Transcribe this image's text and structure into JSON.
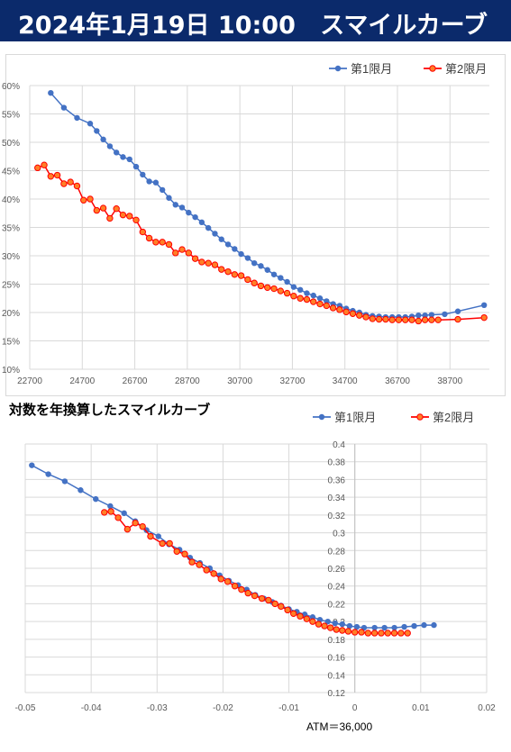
{
  "header": {
    "datetime": "2024年1月19日 10:00",
    "title": "スマイルカーブ"
  },
  "colors": {
    "header_bg": "#0b2a6b",
    "series1": "#4472c4",
    "series2": "#ff0000",
    "series2_fill": "#ff7f27",
    "grid": "#d9d9d9"
  },
  "chart_data": [
    {
      "type": "line",
      "title": "",
      "xlabel": "",
      "ylabel": "",
      "xlim": [
        22700,
        40200
      ],
      "ylim": [
        0.1,
        0.6
      ],
      "xticks": [
        22700,
        24700,
        26700,
        28700,
        30700,
        32700,
        34700,
        36700,
        38700
      ],
      "xtick_labels": [
        "22700",
        "24700",
        "26700",
        "28700",
        "30700",
        "32700",
        "34700",
        "36700",
        "38700"
      ],
      "yticks": [
        0.1,
        0.15,
        0.2,
        0.25,
        0.3,
        0.35,
        0.4,
        0.45,
        0.5,
        0.55,
        0.6
      ],
      "ytick_labels": [
        "10%",
        "15%",
        "20%",
        "25%",
        "30%",
        "35%",
        "40%",
        "45%",
        "50%",
        "55%",
        "60%"
      ],
      "legend": "top-right",
      "series": [
        {
          "name": "第1限月",
          "points": [
            [
              23500,
              0.587
            ],
            [
              24000,
              0.561
            ],
            [
              24500,
              0.543
            ],
            [
              25000,
              0.533
            ],
            [
              25250,
              0.52
            ],
            [
              25500,
              0.505
            ],
            [
              25750,
              0.493
            ],
            [
              26000,
              0.482
            ],
            [
              26250,
              0.474
            ],
            [
              26500,
              0.47
            ],
            [
              26750,
              0.457
            ],
            [
              27000,
              0.443
            ],
            [
              27250,
              0.431
            ],
            [
              27500,
              0.429
            ],
            [
              27750,
              0.416
            ],
            [
              28000,
              0.402
            ],
            [
              28250,
              0.39
            ],
            [
              28500,
              0.385
            ],
            [
              28750,
              0.376
            ],
            [
              29000,
              0.368
            ],
            [
              29250,
              0.359
            ],
            [
              29500,
              0.349
            ],
            [
              29750,
              0.339
            ],
            [
              30000,
              0.329
            ],
            [
              30250,
              0.32
            ],
            [
              30500,
              0.312
            ],
            [
              30750,
              0.303
            ],
            [
              31000,
              0.296
            ],
            [
              31250,
              0.287
            ],
            [
              31500,
              0.282
            ],
            [
              31750,
              0.275
            ],
            [
              32000,
              0.267
            ],
            [
              32250,
              0.261
            ],
            [
              32500,
              0.254
            ],
            [
              32750,
              0.245
            ],
            [
              33000,
              0.24
            ],
            [
              33250,
              0.234
            ],
            [
              33500,
              0.23
            ],
            [
              33750,
              0.225
            ],
            [
              34000,
              0.22
            ],
            [
              34250,
              0.215
            ],
            [
              34500,
              0.212
            ],
            [
              34750,
              0.207
            ],
            [
              35000,
              0.203
            ],
            [
              35250,
              0.2
            ],
            [
              35500,
              0.196
            ],
            [
              35750,
              0.194
            ],
            [
              36000,
              0.193
            ],
            [
              36250,
              0.192
            ],
            [
              36500,
              0.192
            ],
            [
              36750,
              0.192
            ],
            [
              37000,
              0.192
            ],
            [
              37250,
              0.193
            ],
            [
              37500,
              0.195
            ],
            [
              37750,
              0.195
            ],
            [
              38000,
              0.196
            ],
            [
              38500,
              0.197
            ],
            [
              39000,
              0.202
            ],
            [
              40000,
              0.213
            ]
          ]
        },
        {
          "name": "第2限月",
          "points": [
            [
              23000,
              0.455
            ],
            [
              23250,
              0.46
            ],
            [
              23500,
              0.44
            ],
            [
              23750,
              0.442
            ],
            [
              24000,
              0.427
            ],
            [
              24250,
              0.43
            ],
            [
              24500,
              0.423
            ],
            [
              24750,
              0.398
            ],
            [
              25000,
              0.4
            ],
            [
              25250,
              0.38
            ],
            [
              25500,
              0.384
            ],
            [
              25750,
              0.366
            ],
            [
              26000,
              0.383
            ],
            [
              26250,
              0.372
            ],
            [
              26500,
              0.37
            ],
            [
              26750,
              0.363
            ],
            [
              27000,
              0.342
            ],
            [
              27250,
              0.331
            ],
            [
              27500,
              0.324
            ],
            [
              27750,
              0.324
            ],
            [
              28000,
              0.32
            ],
            [
              28250,
              0.305
            ],
            [
              28500,
              0.311
            ],
            [
              28750,
              0.305
            ],
            [
              29000,
              0.295
            ],
            [
              29250,
              0.289
            ],
            [
              29500,
              0.287
            ],
            [
              29750,
              0.284
            ],
            [
              30000,
              0.276
            ],
            [
              30250,
              0.272
            ],
            [
              30500,
              0.267
            ],
            [
              30750,
              0.265
            ],
            [
              31000,
              0.258
            ],
            [
              31250,
              0.252
            ],
            [
              31500,
              0.247
            ],
            [
              31750,
              0.244
            ],
            [
              32000,
              0.242
            ],
            [
              32250,
              0.238
            ],
            [
              32500,
              0.234
            ],
            [
              32750,
              0.229
            ],
            [
              33000,
              0.225
            ],
            [
              33250,
              0.223
            ],
            [
              33500,
              0.219
            ],
            [
              33750,
              0.215
            ],
            [
              34000,
              0.212
            ],
            [
              34250,
              0.208
            ],
            [
              34500,
              0.205
            ],
            [
              34750,
              0.201
            ],
            [
              35000,
              0.198
            ],
            [
              35250,
              0.195
            ],
            [
              35500,
              0.192
            ],
            [
              35750,
              0.189
            ],
            [
              36000,
              0.188
            ],
            [
              36250,
              0.188
            ],
            [
              36500,
              0.187
            ],
            [
              36750,
              0.187
            ],
            [
              37000,
              0.187
            ],
            [
              37250,
              0.187
            ],
            [
              37500,
              0.185
            ],
            [
              37750,
              0.187
            ],
            [
              38000,
              0.187
            ],
            [
              38250,
              0.187
            ],
            [
              39000,
              0.188
            ],
            [
              40000,
              0.191
            ]
          ]
        }
      ]
    },
    {
      "type": "line",
      "title": "対数を年換算したスマイルカーブ",
      "xlabel": "",
      "ylabel": "",
      "xlim": [
        -0.05,
        0.02
      ],
      "ylim": [
        0.12,
        0.4
      ],
      "xticks": [
        -0.05,
        -0.04,
        -0.03,
        -0.02,
        -0.01,
        0,
        0.01,
        0.02
      ],
      "xtick_labels": [
        "-0.05",
        "-0.04",
        "-0.03",
        "-0.02",
        "-0.01",
        "0",
        "0.01",
        "0.02"
      ],
      "yticks": [
        0.12,
        0.14,
        0.16,
        0.18,
        0.2,
        0.22,
        0.24,
        0.26,
        0.28,
        0.3,
        0.32,
        0.34,
        0.36,
        0.38,
        0.4
      ],
      "ytick_labels": [
        "0.12",
        "0.14",
        "0.16",
        "0.18",
        "0.2",
        "0.22",
        "0.24",
        "0.26",
        "0.28",
        "0.3",
        "0.32",
        "0.34",
        "0.36",
        "0.38",
        "0.4"
      ],
      "legend": "top-right",
      "annotation": "ATM＝36,000",
      "series": [
        {
          "name": "第1限月",
          "points": [
            [
              -0.049,
              0.376
            ],
            [
              -0.0465,
              0.366
            ],
            [
              -0.044,
              0.358
            ],
            [
              -0.0416,
              0.348
            ],
            [
              -0.0393,
              0.338
            ],
            [
              -0.0371,
              0.33
            ],
            [
              -0.035,
              0.322
            ],
            [
              -0.0333,
              0.313
            ],
            [
              -0.0316,
              0.303
            ],
            [
              -0.0298,
              0.296
            ],
            [
              -0.0282,
              0.287
            ],
            [
              -0.0266,
              0.281
            ],
            [
              -0.025,
              0.272
            ],
            [
              -0.0235,
              0.266
            ],
            [
              -0.022,
              0.26
            ],
            [
              -0.0205,
              0.252
            ],
            [
              -0.0191,
              0.246
            ],
            [
              -0.0177,
              0.241
            ],
            [
              -0.0164,
              0.236
            ],
            [
              -0.0151,
              0.23
            ],
            [
              -0.0138,
              0.226
            ],
            [
              -0.0125,
              0.222
            ],
            [
              -0.0112,
              0.218
            ],
            [
              -0.01,
              0.214
            ],
            [
              -0.0088,
              0.211
            ],
            [
              -0.0076,
              0.208
            ],
            [
              -0.0064,
              0.205
            ],
            [
              -0.0053,
              0.202
            ],
            [
              -0.0041,
              0.2
            ],
            [
              -0.003,
              0.198
            ],
            [
              -0.0019,
              0.197
            ],
            [
              -0.0008,
              0.195
            ],
            [
              0.0003,
              0.194
            ],
            [
              0.0014,
              0.193
            ],
            [
              0.003,
              0.193
            ],
            [
              0.0045,
              0.193
            ],
            [
              0.006,
              0.193
            ],
            [
              0.0075,
              0.194
            ],
            [
              0.009,
              0.195
            ],
            [
              0.0105,
              0.196
            ],
            [
              0.012,
              0.196
            ]
          ]
        },
        {
          "name": "第2限月",
          "points": [
            [
              -0.038,
              0.323
            ],
            [
              -0.037,
              0.324
            ],
            [
              -0.0359,
              0.317
            ],
            [
              -0.0345,
              0.304
            ],
            [
              -0.0333,
              0.311
            ],
            [
              -0.0322,
              0.307
            ],
            [
              -0.031,
              0.296
            ],
            [
              -0.0292,
              0.288
            ],
            [
              -0.0281,
              0.288
            ],
            [
              -0.027,
              0.279
            ],
            [
              -0.0258,
              0.276
            ],
            [
              -0.0247,
              0.267
            ],
            [
              -0.0236,
              0.264
            ],
            [
              -0.0225,
              0.258
            ],
            [
              -0.0214,
              0.254
            ],
            [
              -0.0203,
              0.248
            ],
            [
              -0.0193,
              0.245
            ],
            [
              -0.0182,
              0.24
            ],
            [
              -0.0172,
              0.236
            ],
            [
              -0.0162,
              0.232
            ],
            [
              -0.0152,
              0.229
            ],
            [
              -0.0141,
              0.226
            ],
            [
              -0.0131,
              0.224
            ],
            [
              -0.0121,
              0.22
            ],
            [
              -0.0112,
              0.217
            ],
            [
              -0.0102,
              0.213
            ],
            [
              -0.0093,
              0.209
            ],
            [
              -0.0083,
              0.206
            ],
            [
              -0.0073,
              0.203
            ],
            [
              -0.0064,
              0.2
            ],
            [
              -0.0055,
              0.197
            ],
            [
              -0.0046,
              0.195
            ],
            [
              -0.0037,
              0.193
            ],
            [
              -0.0028,
              0.191
            ],
            [
              -0.0019,
              0.19
            ],
            [
              -0.001,
              0.189
            ],
            [
              0.0,
              0.188
            ],
            [
              0.001,
              0.188
            ],
            [
              0.002,
              0.187
            ],
            [
              0.003,
              0.187
            ],
            [
              0.004,
              0.187
            ],
            [
              0.005,
              0.187
            ],
            [
              0.006,
              0.187
            ],
            [
              0.007,
              0.187
            ],
            [
              0.008,
              0.187
            ]
          ]
        }
      ]
    }
  ]
}
